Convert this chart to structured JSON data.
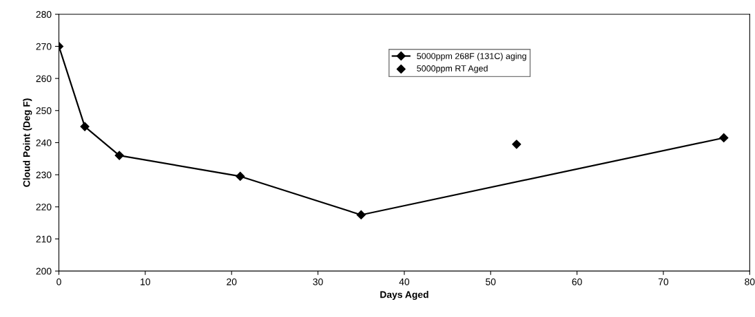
{
  "chart_data": {
    "type": "line",
    "xlabel": "Days Aged",
    "ylabel": "Cloud Point (Deg F)",
    "xlim": [
      0,
      80
    ],
    "xticks": [
      0,
      10,
      20,
      30,
      40,
      50,
      60,
      70,
      80
    ],
    "ylim": [
      200,
      280
    ],
    "yticks": [
      200,
      210,
      220,
      230,
      240,
      250,
      260,
      270,
      280
    ],
    "grid": false,
    "legend": "top",
    "marker": "diamond",
    "line_style": "solid",
    "series": [
      {
        "name": "5000ppm 268F (131C) aging",
        "color": "#000000",
        "x": [
          0,
          3,
          7,
          21,
          35,
          77
        ],
        "values": [
          270,
          245,
          236,
          229.5,
          217.5,
          241.5
        ]
      },
      {
        "name": "5000ppm RT Aged",
        "type": "scatter",
        "color": "#000000",
        "x": [
          53
        ],
        "values": [
          239.5
        ]
      }
    ]
  }
}
